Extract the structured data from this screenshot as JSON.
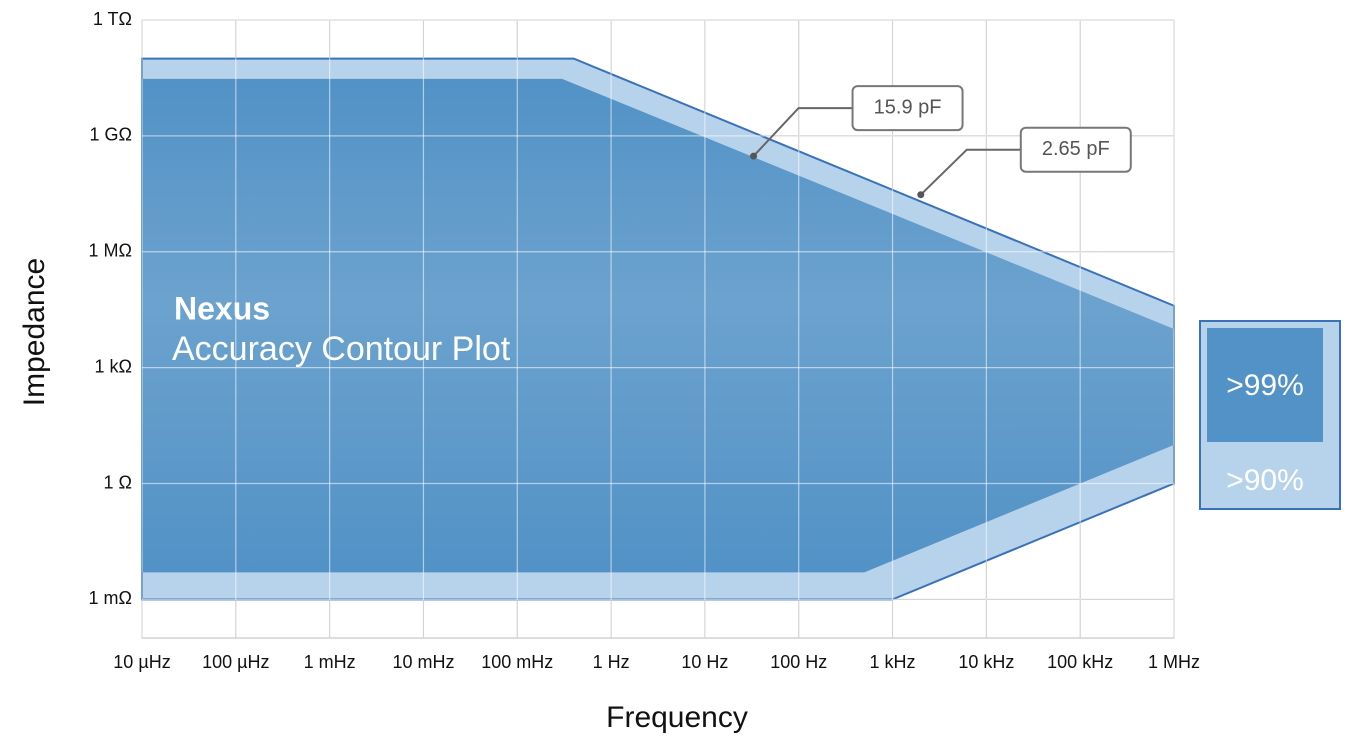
{
  "chart_data": {
    "type": "contour",
    "title": "Nexus",
    "subtitle": "Accuracy Contour Plot",
    "x_label": "Frequency",
    "y_label": "Impedance",
    "xscale": "log",
    "yscale": "log",
    "grid": true,
    "xlim": [
      1e-05,
      1000000
    ],
    "ylim": [
      0.0001,
      1000000000000
    ],
    "xticks": [
      {
        "value": 1e-05,
        "label": "10 µHz"
      },
      {
        "value": 0.0001,
        "label": "100 µHz"
      },
      {
        "value": 0.001,
        "label": "1 mHz"
      },
      {
        "value": 0.01,
        "label": "10 mHz"
      },
      {
        "value": 0.1,
        "label": "100 mHz"
      },
      {
        "value": 1,
        "label": "1 Hz"
      },
      {
        "value": 10,
        "label": "10 Hz"
      },
      {
        "value": 100,
        "label": "100 Hz"
      },
      {
        "value": 1000,
        "label": "1 kHz"
      },
      {
        "value": 10000,
        "label": "10 kHz"
      },
      {
        "value": 100000,
        "label": "100 kHz"
      },
      {
        "value": 1000000,
        "label": "1 MHz"
      }
    ],
    "yticks": [
      {
        "value": 0.001,
        "label": "1 mΩ"
      },
      {
        "value": 1,
        "label": "1 Ω"
      },
      {
        "value": 1000,
        "label": "1 kΩ"
      },
      {
        "value": 1000000,
        "label": "1 MΩ"
      },
      {
        "value": 1000000000,
        "label": "1 GΩ"
      },
      {
        "value": 1000000000000,
        "label": "1 TΩ"
      }
    ],
    "series": [
      {
        "name": ">90%",
        "color": "#b7d2eb",
        "line_color": "#3a72b8",
        "x": [
          1e-05,
          0.4,
          1000000,
          1000000,
          1000,
          1e-05
        ],
        "values": [
          100000000000,
          100000000000,
          40000,
          1,
          0.001,
          0.001
        ]
      },
      {
        "name": ">99%",
        "color": "#5292c6",
        "x": [
          1e-05,
          0.3,
          1000000,
          1000000,
          500,
          1e-05
        ],
        "values": [
          30000000000,
          30000000000,
          10000,
          10,
          0.005,
          0.005
        ]
      }
    ],
    "annotations": [
      {
        "text": "15.9 pF",
        "x": 33,
        "y": 300000000
      },
      {
        "text": "2.65 pF",
        "x": 2000,
        "y": 30000000
      }
    ],
    "legend_position": "right"
  }
}
